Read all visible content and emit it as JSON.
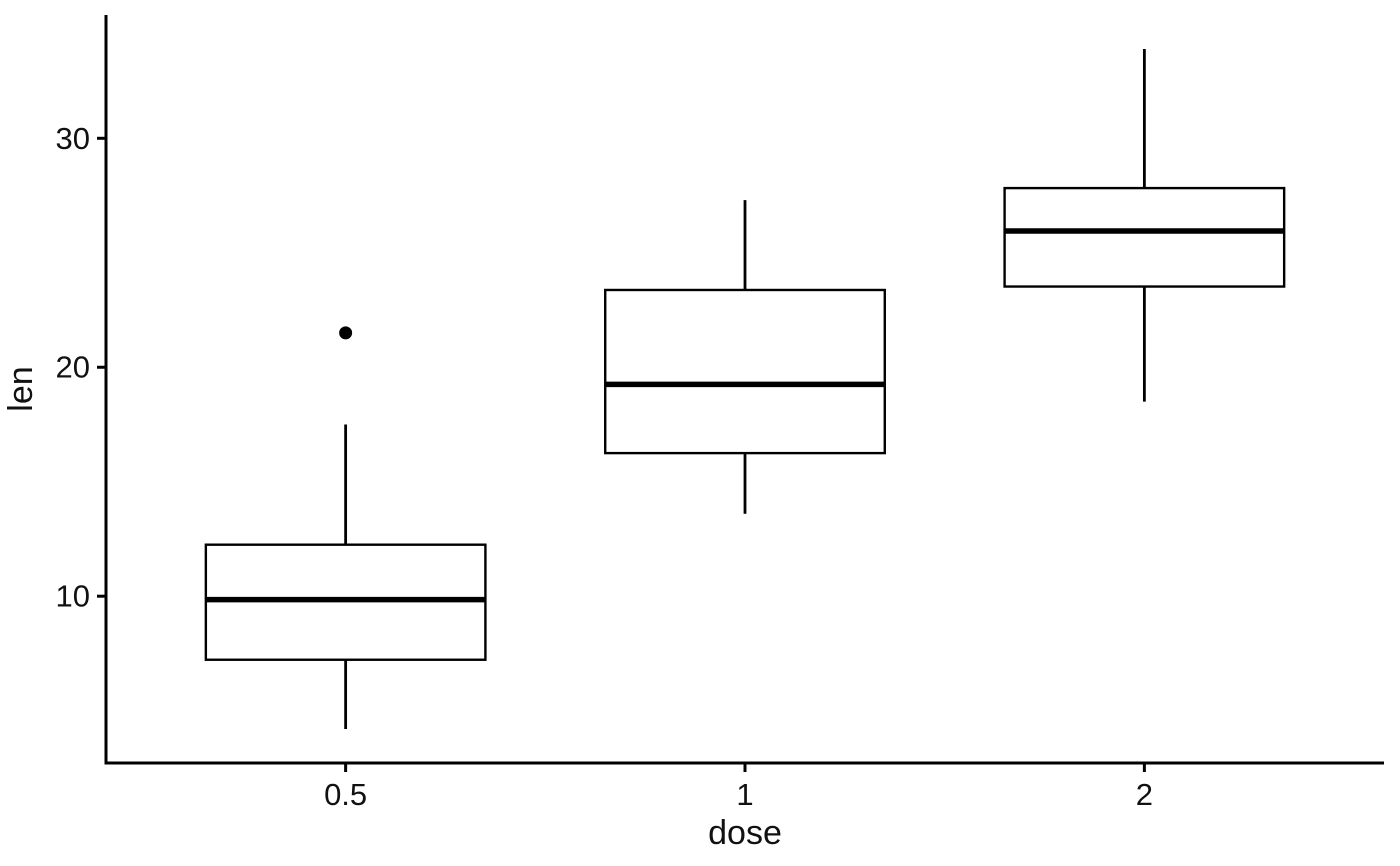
{
  "figure": {
    "background": "#ffffff"
  },
  "chart_data": {
    "type": "boxplot",
    "title": "",
    "xlabel": "dose",
    "ylabel": "len",
    "categories": [
      "0.5",
      "1",
      "2"
    ],
    "y_axis_ticks": [
      "10",
      "20",
      "30"
    ],
    "y_tick_values": [
      10,
      20,
      30
    ],
    "ylim": [
      2.715,
      35.385
    ],
    "grid": "off",
    "legend": "none",
    "orientation": "vertical",
    "series": [
      {
        "category": "0.5",
        "whisker_low": 4.2,
        "q1": 7.225,
        "median": 9.85,
        "q3": 12.25,
        "whisker_high": 17.5,
        "outliers": [
          21.5
        ]
      },
      {
        "category": "1",
        "whisker_low": 13.6,
        "q1": 16.25,
        "median": 19.25,
        "q3": 23.375,
        "whisker_high": 27.3,
        "outliers": []
      },
      {
        "category": "2",
        "whisker_low": 18.5,
        "q1": 23.525,
        "median": 25.95,
        "q3": 27.825,
        "whisker_high": 33.9,
        "outliers": []
      }
    ],
    "colors": {
      "axis_line": "#000000",
      "box_stroke": "#000000",
      "median_line": "#000000",
      "whisker_line": "#000000",
      "outlier_point": "#000000",
      "text": "#111111",
      "box_fill": "#ffffff",
      "background": "#ffffff"
    }
  }
}
